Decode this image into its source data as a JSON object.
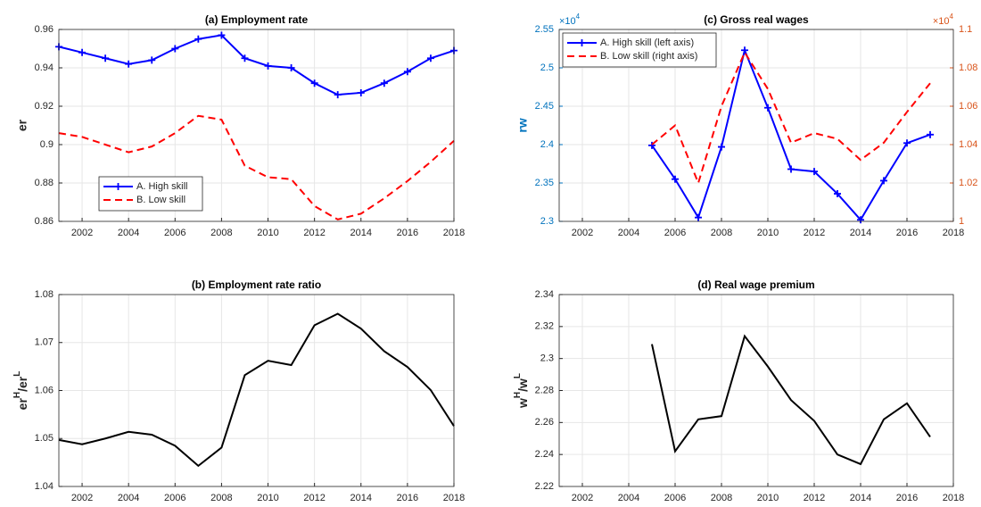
{
  "chart_data": [
    {
      "type": "line",
      "title": "(a) Employment rate",
      "ylabel": "er",
      "x": [
        2001,
        2002,
        2003,
        2004,
        2005,
        2006,
        2007,
        2008,
        2009,
        2010,
        2011,
        2012,
        2013,
        2014,
        2015,
        2016,
        2017,
        2018
      ],
      "series": [
        {
          "name": "A. High skill",
          "color": "#0000ff",
          "marker": "+",
          "dash": false,
          "values": [
            0.951,
            0.948,
            0.945,
            0.942,
            0.944,
            0.95,
            0.955,
            0.957,
            0.945,
            0.941,
            0.94,
            0.932,
            0.926,
            0.927,
            0.932,
            0.938,
            0.945,
            0.949
          ]
        },
        {
          "name": "B. Low skill",
          "color": "#ff0000",
          "dash": true,
          "values": [
            0.906,
            0.904,
            0.9,
            0.896,
            0.899,
            0.906,
            0.915,
            0.913,
            0.889,
            0.883,
            0.882,
            0.868,
            0.861,
            0.864,
            0.872,
            0.881,
            0.891,
            0.902
          ]
        }
      ],
      "xlim": [
        2001,
        2018
      ],
      "xticks": [
        2002,
        2004,
        2006,
        2008,
        2010,
        2012,
        2014,
        2016,
        2018
      ],
      "ylim": [
        0.86,
        0.96
      ],
      "yticks": [
        0.86,
        0.88,
        0.9,
        0.92,
        0.94,
        0.96
      ],
      "grid": true,
      "legend": "lower left"
    },
    {
      "type": "line",
      "title": "(b) Employment rate ratio",
      "ylabel": [
        "er",
        "H",
        "/er",
        "L"
      ],
      "x": [
        2001,
        2002,
        2003,
        2004,
        2005,
        2006,
        2007,
        2008,
        2009,
        2010,
        2011,
        2012,
        2013,
        2014,
        2015,
        2016,
        2017,
        2018
      ],
      "series": [
        {
          "color": "#000000",
          "dash": false,
          "values": [
            1.0497,
            1.0488,
            1.05,
            1.0514,
            1.0508,
            1.0485,
            1.0443,
            1.0481,
            1.0632,
            1.0662,
            1.0653,
            1.0736,
            1.076,
            1.0729,
            1.0682,
            1.0649,
            1.0601,
            1.0526
          ]
        }
      ],
      "xlim": [
        2001,
        2018
      ],
      "xticks": [
        2002,
        2004,
        2006,
        2008,
        2010,
        2012,
        2014,
        2016,
        2018
      ],
      "ylim": [
        1.04,
        1.08
      ],
      "yticks": [
        1.04,
        1.05,
        1.06,
        1.07,
        1.08
      ],
      "grid": true
    },
    {
      "type": "line",
      "title": "(c) Gross real wages",
      "ylabel": "rw",
      "x": [
        2005,
        2006,
        2007,
        2008,
        2009,
        2010,
        2011,
        2012,
        2013,
        2014,
        2015,
        2016,
        2017
      ],
      "series": [
        {
          "name": "A. High skill (left axis)",
          "color": "#0000ff",
          "marker": "+",
          "dash": false,
          "values": [
            2.399,
            2.355,
            2.305,
            2.397,
            2.523,
            2.448,
            2.368,
            2.365,
            2.336,
            2.302,
            2.353,
            2.402,
            2.413
          ]
        },
        {
          "name": "B. Low skill (right axis)",
          "color": "#ff0000",
          "dash": true,
          "axis": "y2",
          "values": [
            1.04,
            1.05,
            1.02,
            1.06,
            1.088,
            1.069,
            1.041,
            1.046,
            1.043,
            1.032,
            1.041,
            1.057,
            1.072
          ]
        }
      ],
      "xlim": [
        2001,
        2018
      ],
      "xticks": [
        2002,
        2004,
        2006,
        2008,
        2010,
        2012,
        2014,
        2016,
        2018
      ],
      "ylim": [
        2.3,
        2.55
      ],
      "yticks": [
        2.3,
        2.35,
        2.4,
        2.45,
        2.5,
        2.55
      ],
      "y_color": "#0072bd",
      "y_multiplier": [
        "×10",
        "4"
      ],
      "y2lim": [
        1,
        1.1
      ],
      "y2ticks": [
        1,
        1.02,
        1.04,
        1.06,
        1.08,
        1.1
      ],
      "y2_color": "#d95319",
      "y2_multiplier": [
        "×10",
        "4"
      ],
      "grid": true,
      "legend": "upper left"
    },
    {
      "type": "line",
      "title": "(d) Real wage premium",
      "ylabel": [
        "w",
        "H",
        "/w",
        "L"
      ],
      "x": [
        2005,
        2006,
        2007,
        2008,
        2009,
        2010,
        2011,
        2012,
        2013,
        2014,
        2015,
        2016,
        2017
      ],
      "series": [
        {
          "color": "#000000",
          "dash": false,
          "values": [
            2.309,
            2.242,
            2.262,
            2.264,
            2.314,
            2.295,
            2.274,
            2.261,
            2.24,
            2.234,
            2.262,
            2.272,
            2.251
          ]
        }
      ],
      "xlim": [
        2001,
        2018
      ],
      "xticks": [
        2002,
        2004,
        2006,
        2008,
        2010,
        2012,
        2014,
        2016,
        2018
      ],
      "ylim": [
        2.22,
        2.34
      ],
      "yticks": [
        2.22,
        2.24,
        2.26,
        2.28,
        2.3,
        2.32,
        2.34
      ],
      "grid": true
    }
  ]
}
